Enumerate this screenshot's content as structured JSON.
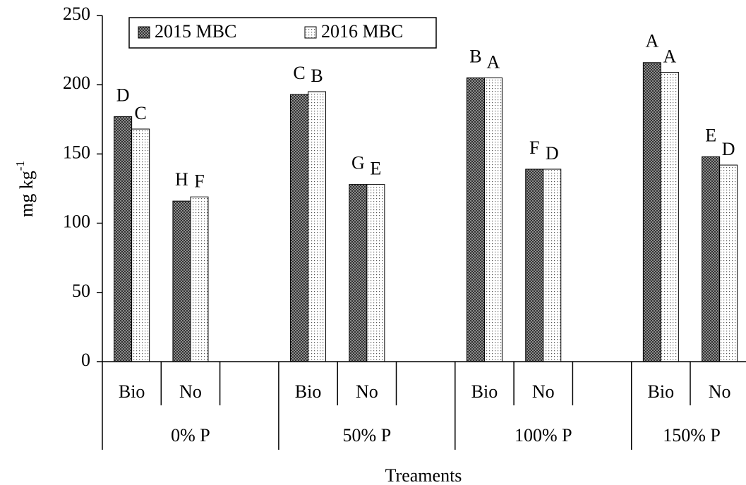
{
  "chart_data": {
    "type": "bar",
    "categories": [
      "Bio",
      "No",
      "Bio",
      "No",
      "Bio",
      "No",
      "Bio",
      "No"
    ],
    "groups": [
      "0% P",
      "50% P",
      "100% P",
      "150% P"
    ],
    "series": [
      {
        "name": "2015 MBC",
        "color": "#8c8c8c",
        "values": [
          177,
          116,
          193,
          128,
          205,
          139,
          216,
          148
        ],
        "letters": [
          "D",
          "H",
          "C",
          "G",
          "B",
          "F",
          "A",
          "E"
        ]
      },
      {
        "name": "2016 MBC",
        "color": "#ffffff",
        "values": [
          168,
          119,
          195,
          128,
          205,
          139,
          209,
          142
        ],
        "letters": [
          "C",
          "F",
          "B",
          "E",
          "A",
          "D",
          "A",
          "D"
        ]
      }
    ],
    "ylabel": "mg kg",
    "ylabel_sup": "-1",
    "xlabel": "Treaments",
    "ylim": [
      0,
      250
    ],
    "yticks": [
      0,
      50,
      100,
      150,
      200,
      250
    ]
  }
}
